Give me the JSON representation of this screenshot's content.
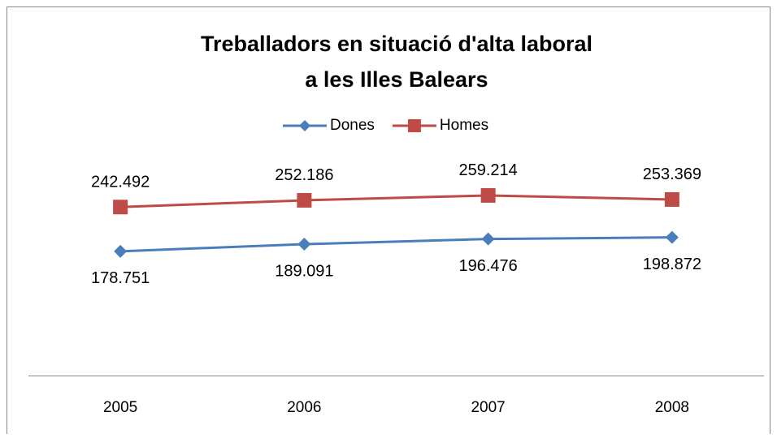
{
  "chart_data": {
    "type": "line",
    "title": [
      "Treballadors en situació d'alta laboral",
      "a les Illes Balears"
    ],
    "categories": [
      "2005",
      "2006",
      "2007",
      "2008"
    ],
    "series": [
      {
        "name": "Dones",
        "color": "#4a7ebb",
        "marker": "diamond",
        "values": [
          178751,
          189091,
          196476,
          198872
        ],
        "value_labels": [
          "178.751",
          "189.091",
          "196.476",
          "198.872"
        ]
      },
      {
        "name": "Homes",
        "color": "#be4b48",
        "marker": "square",
        "values": [
          242492,
          252186,
          259214,
          253369
        ],
        "value_labels": [
          "242.492",
          "252.186",
          "259.214",
          "253.369"
        ]
      }
    ],
    "ylim": [
      0,
      300000
    ],
    "legend": "top"
  }
}
